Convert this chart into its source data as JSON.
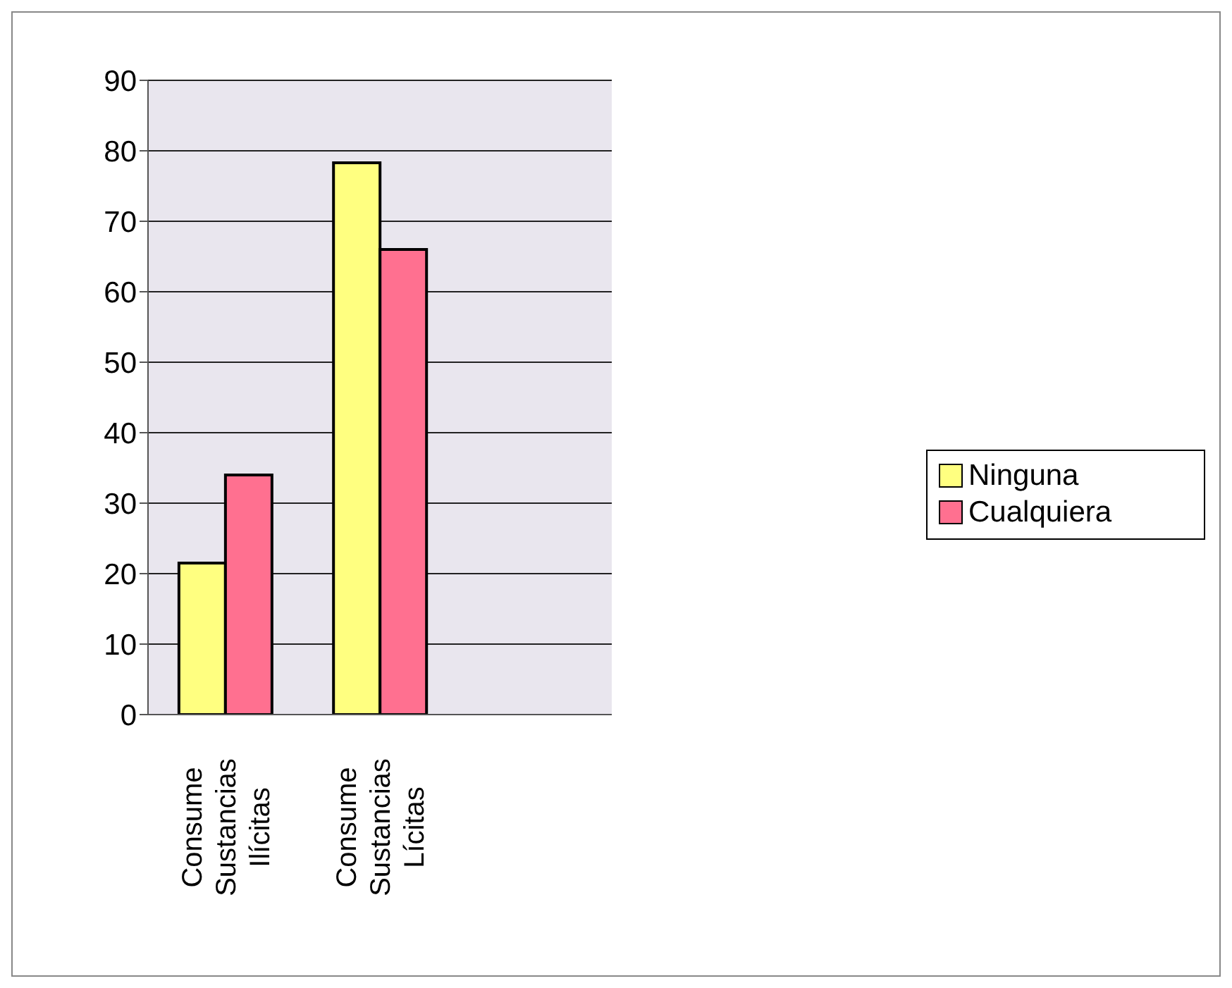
{
  "chart_data": {
    "type": "bar",
    "categories": [
      "Consume Sustancias Ilícitas",
      "Consume Sustancias Lícitas",
      null
    ],
    "series": [
      {
        "name": "Ninguna",
        "color": "#ffff80",
        "values": [
          21.5,
          78.3,
          null
        ]
      },
      {
        "name": "Cualquiera",
        "color": "#ff7090",
        "values": [
          34,
          66,
          null
        ]
      }
    ],
    "ylim": [
      0,
      90
    ],
    "yticks": [
      0,
      10,
      20,
      30,
      40,
      50,
      60,
      70,
      80,
      90
    ],
    "grid": "y",
    "legend": "right"
  }
}
